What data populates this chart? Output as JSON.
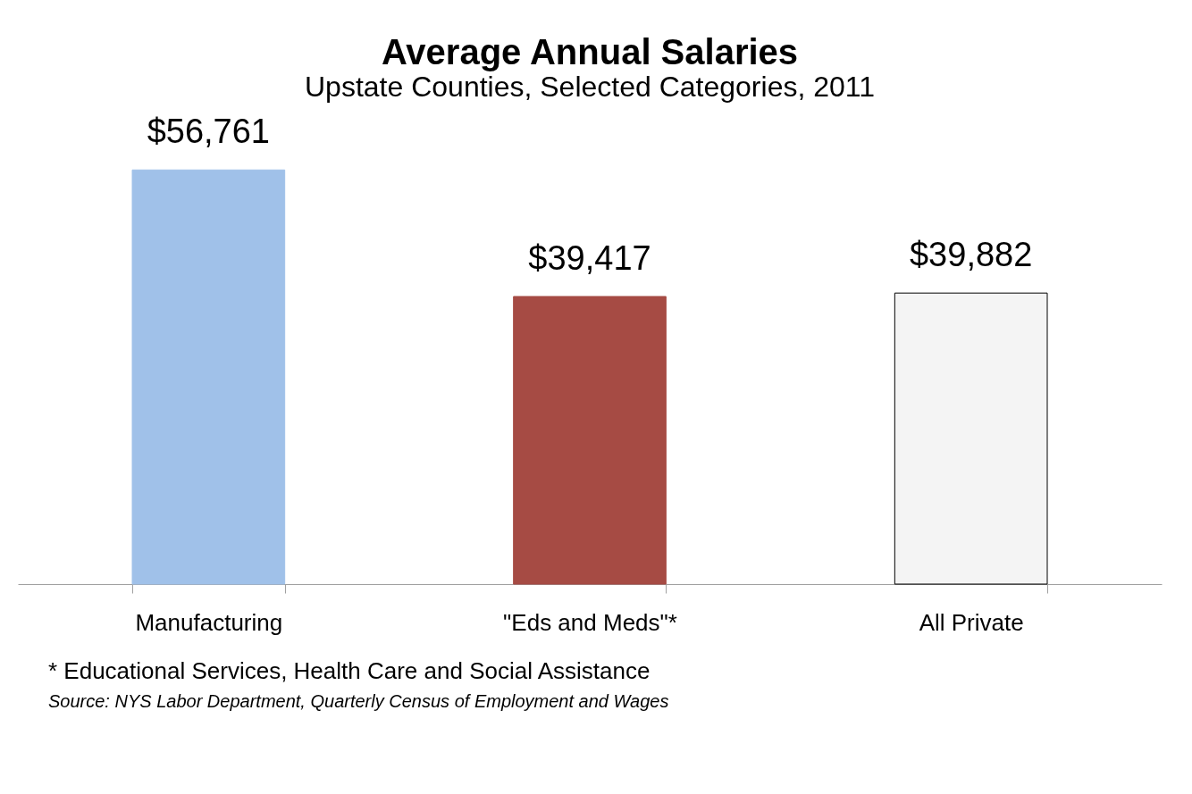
{
  "chart_data": {
    "type": "bar",
    "title": "Average Annual Salaries",
    "subtitle": "Upstate Counties, Selected Categories, 2011",
    "categories": [
      "Manufacturing",
      "\"Eds and Meds\"*",
      "All Private"
    ],
    "values": [
      56761,
      39417,
      39882
    ],
    "colors": [
      "#a0c1e9",
      "#a64b44",
      "#f4f4f4"
    ],
    "value_labels": [
      "$56,761",
      "$39,417",
      "$39,882"
    ],
    "annotations": [
      "* Educational Services, Health Care and Social Assistance",
      "Source: NYS Labor Department, Quarterly Census of Employment and Wages"
    ]
  }
}
